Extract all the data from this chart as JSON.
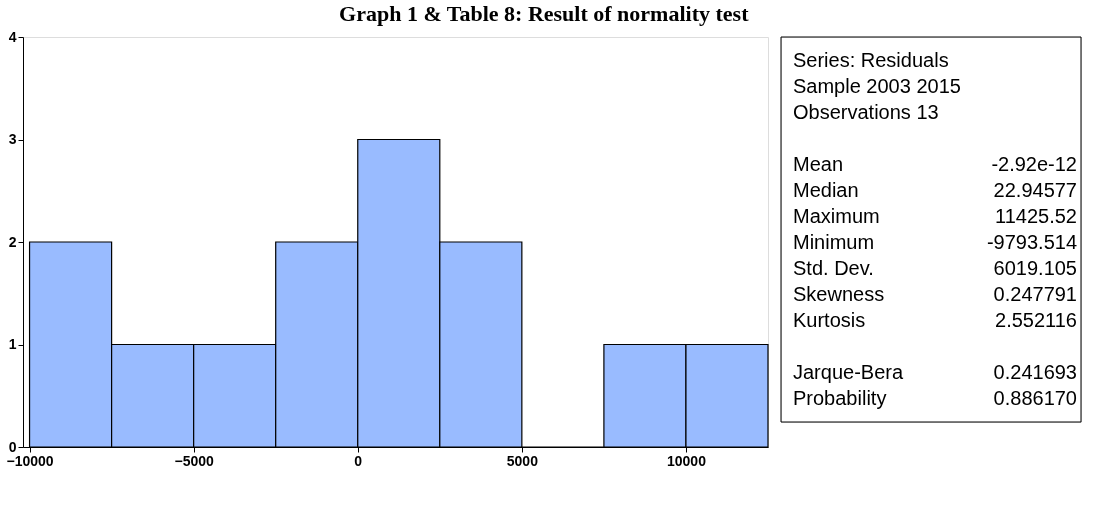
{
  "chart_data": {
    "type": "histogram",
    "title": "Graph 1 & Table 8: Result of normality test",
    "bins": [
      -10000,
      -7500,
      -5000,
      -2500,
      0,
      2500,
      5000,
      7500,
      10000,
      12500
    ],
    "values": [
      2,
      1,
      1,
      2,
      3,
      2,
      0,
      1,
      1
    ],
    "color": "#99bbff",
    "xlim": [
      -10200,
      12500
    ],
    "xticks": [
      -10000,
      -5000,
      0,
      5000,
      10000
    ],
    "ylim": [
      0,
      4
    ],
    "yticks": [
      0,
      1,
      2,
      3,
      4
    ],
    "grid": false,
    "annotations": [
      "Series: Residuals",
      "Sample 2003 2015",
      "Observations 13",
      "Mean",
      "-2.92e-12",
      "Median",
      "22.94577",
      "Maximum",
      "11425.52",
      "Minimum",
      "-9793.514",
      "Std. Dev.",
      "6019.105",
      "Skewness",
      "0.247791",
      "Kurtosis",
      "2.552116",
      "Jarque-Bera",
      "0.241693",
      "Probability",
      "0.886170"
    ]
  }
}
